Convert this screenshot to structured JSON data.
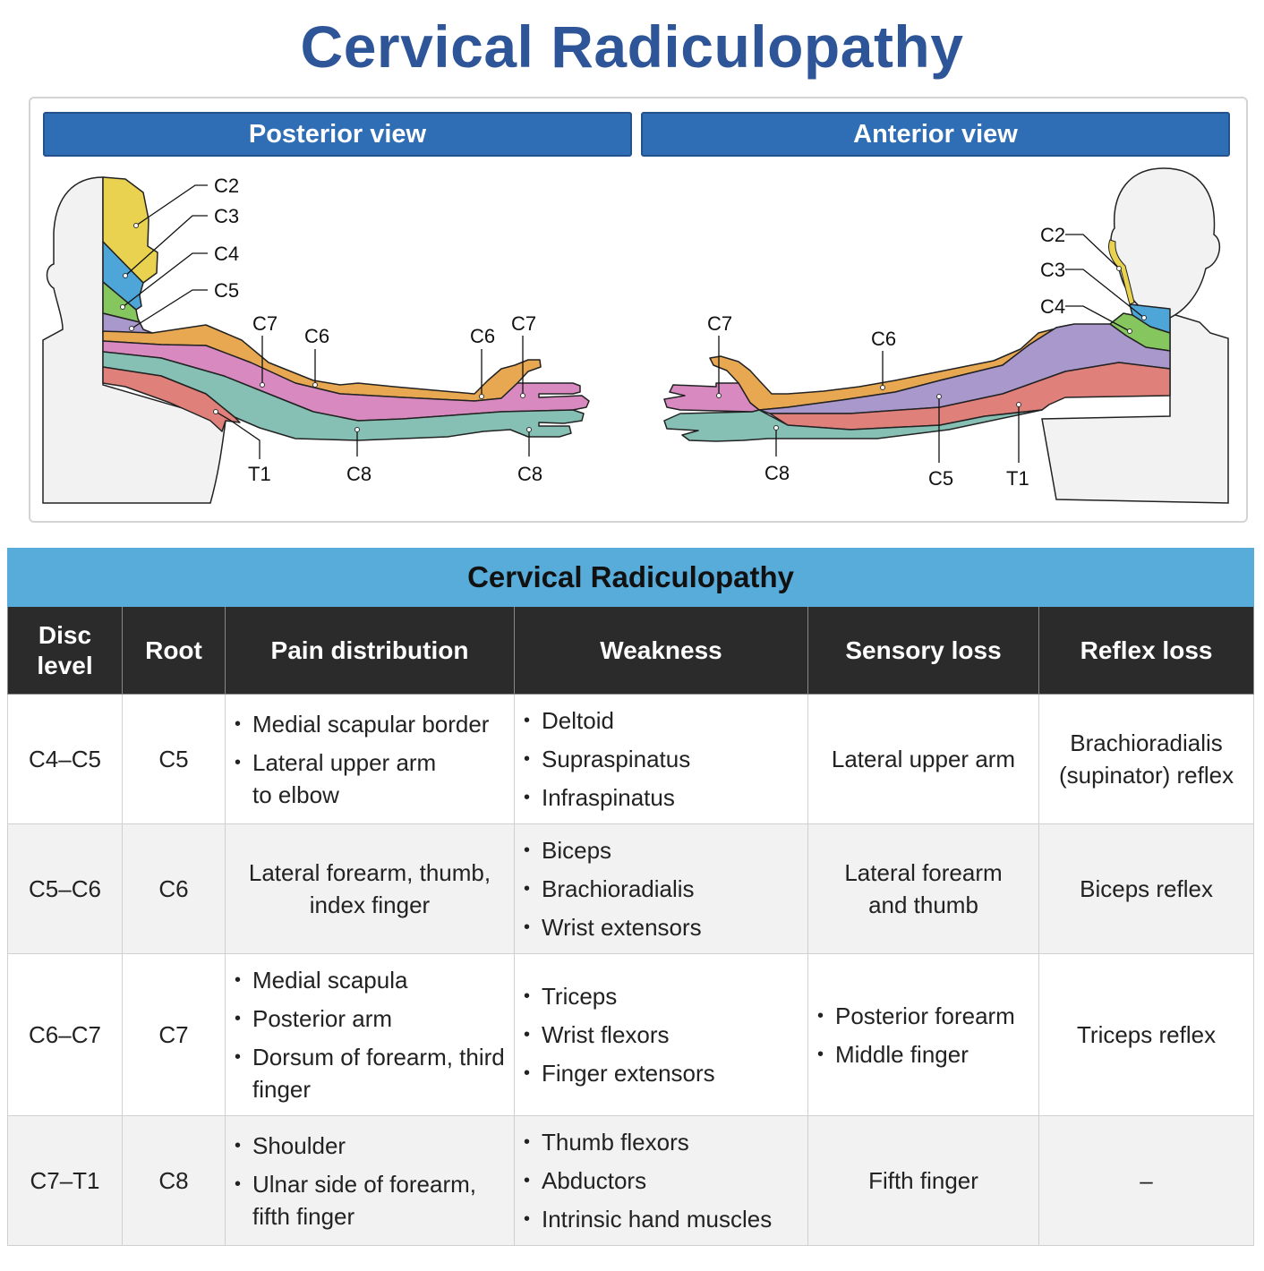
{
  "title": "Cervical Radiculopathy",
  "views": {
    "posterior": {
      "label": "Posterior view",
      "dermatomes": [
        "C2",
        "C3",
        "C4",
        "C5",
        "C7",
        "C6",
        "C6",
        "C7",
        "T1",
        "C8",
        "C8"
      ]
    },
    "anterior": {
      "label": "Anterior view",
      "dermatomes": [
        "C2",
        "C3",
        "C4",
        "C7",
        "C6",
        "C8",
        "C5",
        "T1"
      ]
    },
    "colors": {
      "C2": "#e8d24f",
      "C3": "#4ea6d8",
      "C4": "#86c65e",
      "C5": "#a898cb",
      "C6": "#e8a852",
      "C7": "#d88ac0",
      "C8": "#86c0b4",
      "T1": "#e0807a"
    }
  },
  "table": {
    "title": "Cervical Radiculopathy",
    "headers": [
      "Disc level",
      "Root",
      "Pain distribution",
      "Weakness",
      "Sensory loss",
      "Reflex loss"
    ],
    "rows": [
      {
        "disc": "C4–C5",
        "root": "C5",
        "pain": [
          "Medial scapular border",
          "Lateral upper arm to elbow"
        ],
        "weakness": [
          "Deltoid",
          "Supraspinatus",
          "Infraspinatus"
        ],
        "sensory": "Lateral upper arm",
        "reflex": "Brachioradialis (supinator) reflex"
      },
      {
        "disc": "C5–C6",
        "root": "C6",
        "pain": "Lateral forearm, thumb, index finger",
        "weakness": [
          "Biceps",
          "Brachioradialis",
          "Wrist extensors"
        ],
        "sensory": "Lateral forearm and thumb",
        "reflex": "Biceps reflex"
      },
      {
        "disc": "C6–C7",
        "root": "C7",
        "pain": [
          "Medial scapula",
          "Posterior arm",
          "Dorsum of forearm, third finger"
        ],
        "weakness": [
          "Triceps",
          "Wrist flexors",
          "Finger extensors"
        ],
        "sensory": [
          "Posterior forearm",
          "Middle finger"
        ],
        "reflex": "Triceps reflex"
      },
      {
        "disc": "C7–T1",
        "root": "C8",
        "pain": [
          "Shoulder",
          "Ulnar side of forearm, fifth finger"
        ],
        "weakness": [
          "Thumb flexors",
          "Abductors",
          "Intrinsic hand muscles"
        ],
        "sensory": "Fifth finger",
        "reflex": "–"
      }
    ]
  }
}
